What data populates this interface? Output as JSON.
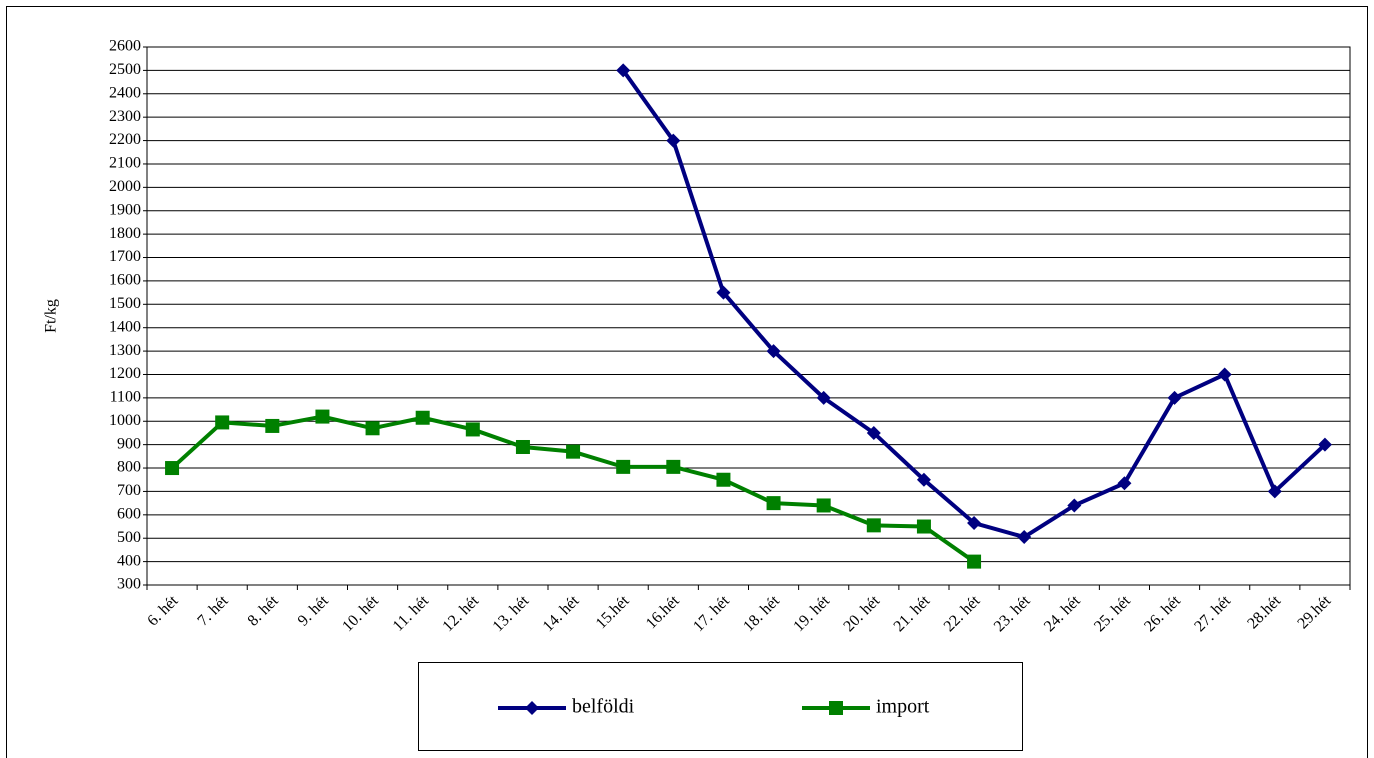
{
  "chart_data": {
    "type": "line",
    "ylabel": "Ft/kg",
    "categories": [
      "6. hét",
      "7. hét",
      "8. hét",
      "9. hét",
      "10. hét",
      "11. hét",
      "12. hét",
      "13. hét",
      "14. hét",
      "15.hét",
      "16.hét",
      "17. hét",
      "18. hét",
      "19. hét",
      "20. hét",
      "21. hét",
      "22. hét",
      "23. hét",
      "24. hét",
      "25. hét",
      "26. hét",
      "27. hét",
      "28.hét",
      "29.hét"
    ],
    "series": [
      {
        "name": "belföldi",
        "color": "#000080",
        "marker": "diamond",
        "values": [
          null,
          null,
          null,
          null,
          null,
          null,
          null,
          null,
          null,
          2500,
          2200,
          1550,
          1300,
          1100,
          950,
          750,
          565,
          505,
          640,
          735,
          1100,
          1200,
          700,
          900
        ]
      },
      {
        "name": "import",
        "color": "#008000",
        "marker": "square",
        "values": [
          800,
          995,
          980,
          1020,
          970,
          1015,
          965,
          890,
          870,
          805,
          805,
          750,
          650,
          640,
          555,
          550,
          400,
          null,
          null,
          null,
          null,
          null,
          null,
          null
        ]
      }
    ],
    "ylim": [
      300,
      2600
    ],
    "yticks": [
      300,
      400,
      500,
      600,
      700,
      800,
      900,
      1000,
      1100,
      1200,
      1300,
      1400,
      1500,
      1600,
      1700,
      1800,
      1900,
      2000,
      2100,
      2200,
      2300,
      2400,
      2500,
      2600
    ],
    "grid": true,
    "legend": "bottom"
  }
}
